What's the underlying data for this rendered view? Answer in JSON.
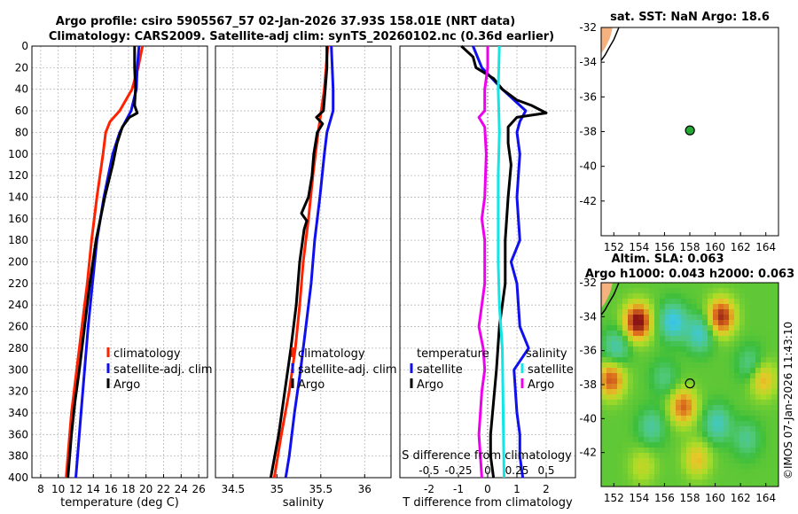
{
  "title": {
    "line1": "Argo profile: csiro 5905567_57 02-Jan-2026 37.93S 158.01E (NRT data)",
    "line2": "Climatology: CARS2009. Satellite-adj clim: synTS_20260102.nc (0.36d earlier)"
  },
  "colors": {
    "climatology": "#ff2200",
    "satellite": "#1010ee",
    "argo": "#000000",
    "t_diff": "#ee00ee",
    "s_diff": "#11e6e6"
  },
  "depth_axis": {
    "ticks": [
      0,
      20,
      40,
      60,
      80,
      100,
      120,
      140,
      160,
      180,
      200,
      220,
      240,
      260,
      280,
      300,
      320,
      340,
      360,
      380,
      400
    ],
    "ylim": [
      0,
      400
    ]
  },
  "chart_data": [
    {
      "type": "line",
      "name": "temperature",
      "xlabel": "temperature (deg C)",
      "xlim": [
        7,
        27
      ],
      "xticks": [
        8,
        10,
        12,
        14,
        16,
        18,
        20,
        22,
        24,
        26
      ],
      "series": [
        {
          "name": "climatology",
          "color": "#ff2200",
          "depth": [
            0,
            20,
            40,
            60,
            70,
            80,
            100,
            140,
            180,
            220,
            260,
            300,
            340,
            380,
            400
          ],
          "values": [
            19.6,
            19.1,
            18.4,
            17.0,
            15.9,
            15.4,
            15.1,
            14.4,
            13.8,
            13.3,
            12.7,
            12.1,
            11.5,
            11.1,
            10.9
          ]
        },
        {
          "name": "satellite-adj. clim",
          "color": "#1010ee",
          "depth": [
            0,
            20,
            40,
            60,
            80,
            100,
            140,
            180,
            220,
            260,
            300,
            340,
            380,
            400
          ],
          "values": [
            19.2,
            19.0,
            18.9,
            18.3,
            17.0,
            16.2,
            15.2,
            14.4,
            13.9,
            13.4,
            13.0,
            12.6,
            12.2,
            12.0
          ]
        },
        {
          "name": "Argo",
          "color": "#000000",
          "depth": [
            0,
            20,
            40,
            55,
            62,
            66,
            75,
            90,
            110,
            140,
            180,
            220,
            260,
            300,
            330,
            360,
            390,
            400
          ],
          "values": [
            18.7,
            18.7,
            18.8,
            18.7,
            19.0,
            18.1,
            17.3,
            16.7,
            16.2,
            15.3,
            14.3,
            13.6,
            13.0,
            12.4,
            11.9,
            11.5,
            11.2,
            11.1
          ]
        }
      ],
      "legend": [
        "climatology",
        "satellite-adj. clim",
        "Argo"
      ]
    },
    {
      "type": "line",
      "name": "salinity",
      "xlabel": "salinity",
      "xlim": [
        34.3,
        36.3
      ],
      "xticks": [
        34.5,
        35,
        35.5,
        36
      ],
      "xtick_labels": [
        "34.5",
        "35",
        "35.5",
        "36"
      ],
      "series": [
        {
          "name": "climatology",
          "color": "#ff2200",
          "depth": [
            0,
            40,
            80,
            120,
            160,
            200,
            240,
            280,
            320,
            360,
            400
          ],
          "values": [
            35.58,
            35.54,
            35.47,
            35.41,
            35.36,
            35.3,
            35.26,
            35.21,
            35.14,
            35.05,
            34.97
          ]
        },
        {
          "name": "satellite-adj. clim",
          "color": "#1010ee",
          "depth": [
            0,
            20,
            40,
            60,
            80,
            100,
            140,
            180,
            220,
            260,
            300,
            340,
            380,
            400
          ],
          "values": [
            35.62,
            35.63,
            35.64,
            35.64,
            35.57,
            35.54,
            35.49,
            35.43,
            35.39,
            35.33,
            35.27,
            35.2,
            35.14,
            35.1
          ]
        },
        {
          "name": "Argo",
          "color": "#000000",
          "depth": [
            0,
            20,
            40,
            60,
            66,
            72,
            80,
            100,
            120,
            140,
            155,
            162,
            170,
            200,
            240,
            280,
            320,
            360,
            400
          ],
          "values": [
            35.57,
            35.57,
            35.55,
            35.53,
            35.45,
            35.52,
            35.46,
            35.42,
            35.4,
            35.36,
            35.28,
            35.34,
            35.31,
            35.26,
            35.22,
            35.16,
            35.09,
            35.02,
            34.93
          ]
        }
      ],
      "legend": [
        "climatology",
        "satellite-adj. clim",
        "Argo"
      ]
    },
    {
      "type": "line",
      "name": "differences",
      "xlabel": "T difference from climatology",
      "xlabel_top": "S difference from climatology",
      "xlim": [
        -3,
        3
      ],
      "xticks": [
        -2,
        -1,
        0,
        1,
        2
      ],
      "xticks_top_labels": [
        "-0.5",
        "-0.25",
        "0",
        "0.25",
        "0.5"
      ],
      "xticks_top_values": [
        -2,
        -1,
        0,
        1,
        2
      ],
      "series": [
        {
          "name": "temperature satellite",
          "color": "#1010ee",
          "depth": [
            0,
            20,
            40,
            60,
            70,
            80,
            100,
            140,
            180,
            200,
            220,
            260,
            280,
            300,
            340,
            360,
            380,
            400
          ],
          "values": [
            -0.5,
            -0.2,
            0.5,
            1.3,
            1.1,
            1.0,
            1.1,
            1.0,
            1.1,
            0.8,
            1.0,
            1.1,
            1.4,
            0.9,
            1.0,
            1.1,
            1.1,
            1.2
          ]
        },
        {
          "name": "temperature Argo",
          "color": "#000000",
          "depth": [
            0,
            10,
            20,
            30,
            40,
            50,
            55,
            62,
            66,
            75,
            90,
            110,
            140,
            180,
            220,
            260,
            300,
            330,
            360,
            380,
            400
          ],
          "values": [
            -0.9,
            -0.5,
            -0.4,
            0.2,
            0.5,
            1.0,
            1.5,
            2.0,
            1.0,
            0.7,
            0.7,
            0.8,
            0.7,
            0.6,
            0.6,
            0.4,
            0.3,
            0.2,
            0.1,
            0.1,
            0.2
          ]
        },
        {
          "name": "salinity satellite",
          "color": "#11e6e6",
          "depth": [
            0,
            40,
            80,
            120,
            160,
            200,
            240,
            280,
            320,
            360,
            400
          ],
          "values": [
            0.4,
            0.36,
            0.4,
            0.36,
            0.36,
            0.36,
            0.4,
            0.5,
            0.52,
            0.54,
            0.56
          ]
        },
        {
          "name": "salinity Argo",
          "color": "#ee00ee",
          "depth": [
            0,
            20,
            40,
            60,
            66,
            75,
            100,
            140,
            160,
            180,
            220,
            240,
            260,
            280,
            300,
            320,
            340,
            360,
            380,
            400
          ],
          "values": [
            0.0,
            0.0,
            -0.1,
            -0.1,
            -0.3,
            -0.1,
            -0.05,
            -0.1,
            -0.2,
            -0.1,
            -0.1,
            -0.2,
            -0.3,
            -0.15,
            -0.1,
            -0.2,
            -0.25,
            -0.3,
            -0.25,
            -0.2
          ]
        }
      ],
      "legend_left_title": "temperature",
      "legend_left": [
        "satellite",
        "Argo"
      ],
      "legend_right_title": "salinity",
      "legend_right": [
        "satellite",
        "Argo"
      ]
    }
  ],
  "sst_map": {
    "title": "sat. SST: NaN Argo: 18.6",
    "yticks": [
      -32,
      -34,
      -36,
      -38,
      -40,
      -42
    ],
    "xticks": [
      152,
      154,
      156,
      158,
      160,
      162,
      164
    ],
    "xlim": [
      151,
      165
    ],
    "ylim": [
      -44,
      -32
    ],
    "argo_lon": 158.01,
    "argo_lat": -37.93
  },
  "sla_map": {
    "title_line1": "Altim. SLA: 0.063",
    "title_line2": "Argo h1000: 0.043 h2000: 0.063",
    "yticks": [
      -32,
      -34,
      -36,
      -38,
      -40,
      -42
    ],
    "xticks": [
      152,
      154,
      156,
      158,
      160,
      162,
      164
    ],
    "xlim": [
      151,
      165
    ],
    "ylim": [
      -44,
      -32
    ],
    "argo_lon": 158.01,
    "argo_lat": -37.93,
    "blobs": [
      {
        "lon": 153.9,
        "lat": -34.3,
        "v": 1.0
      },
      {
        "lon": 160.5,
        "lat": -34.0,
        "v": 0.85
      },
      {
        "lon": 156.7,
        "lat": -34.3,
        "v": -0.6
      },
      {
        "lon": 158.8,
        "lat": -35.0,
        "v": -0.5
      },
      {
        "lon": 152.2,
        "lat": -35.8,
        "v": -0.4
      },
      {
        "lon": 151.8,
        "lat": -37.7,
        "v": 0.7
      },
      {
        "lon": 157.5,
        "lat": -39.3,
        "v": 0.65
      },
      {
        "lon": 163.8,
        "lat": -37.7,
        "v": 0.45
      },
      {
        "lon": 162.8,
        "lat": -36.8,
        "v": -0.3
      },
      {
        "lon": 160.2,
        "lat": -40.3,
        "v": -0.45
      },
      {
        "lon": 155.0,
        "lat": -40.5,
        "v": -0.35
      },
      {
        "lon": 162.5,
        "lat": -41.2,
        "v": -0.3
      },
      {
        "lon": 156.0,
        "lat": -37.6,
        "v": -0.25
      },
      {
        "lon": 158.6,
        "lat": -42.4,
        "v": 0.4
      },
      {
        "lon": 154.3,
        "lat": -42.8,
        "v": 0.25
      }
    ]
  },
  "credit": "©IMOS 07-Jan-2026 11:43:10"
}
